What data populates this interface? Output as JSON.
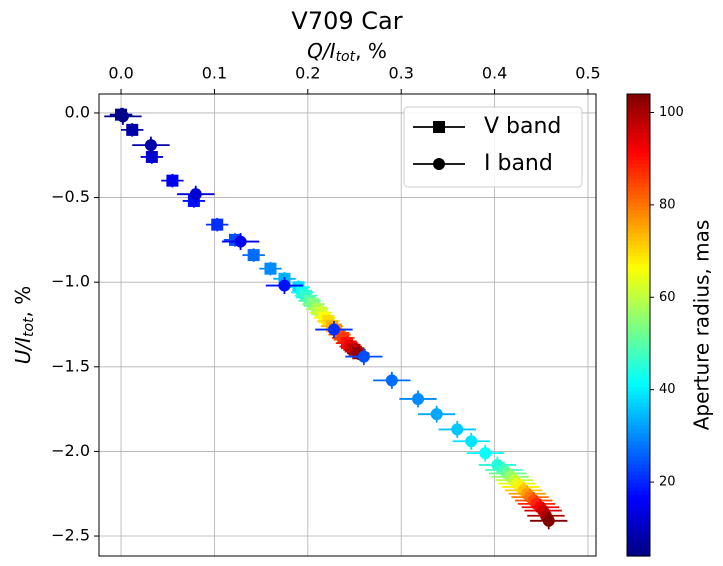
{
  "chart_data": {
    "type": "scatter",
    "title": "V709 Car",
    "xlabel": [
      "Q/I",
      "tot",
      ", %"
    ],
    "ylabel": [
      "U/I",
      "tot",
      ", %"
    ],
    "xlim": [
      -0.0236,
      0.5086
    ],
    "ylim": [
      -2.618,
      0.112
    ],
    "xticks": [
      {
        "value": 0,
        "label": "0.0"
      },
      0.1,
      0.2,
      0.3,
      0.4,
      0.5
    ],
    "yticks": [
      {
        "value": 0,
        "label": "0.0"
      },
      {
        "value": -0.5,
        "label": "−0.5"
      },
      {
        "value": -1,
        "label": "−1.0"
      },
      {
        "value": -1.5,
        "label": "−1.5"
      },
      {
        "value": -2,
        "label": "−2.0"
      },
      {
        "value": -2.5,
        "label": "−2.5"
      }
    ],
    "grid": true,
    "legend": "upper right",
    "colormap": "jet",
    "colorbar": {
      "label": "Aperture radius, mas",
      "clim": [
        4,
        104
      ],
      "ticks": [
        20,
        40,
        60,
        80,
        100
      ]
    },
    "series": [
      {
        "name": "V band",
        "marker": "square",
        "xerr": 0.012,
        "yerr": 0.04,
        "x": [
          0.0,
          0.012,
          0.033,
          0.055,
          0.078,
          0.103,
          0.122,
          0.142,
          0.16,
          0.175,
          0.19,
          0.194,
          0.198,
          0.202,
          0.206,
          0.21,
          0.214,
          0.218,
          0.222,
          0.226,
          0.23,
          0.234,
          0.238,
          0.242,
          0.246,
          0.25,
          0.254
        ],
        "values": [
          -0.01,
          -0.1,
          -0.26,
          -0.4,
          -0.52,
          -0.66,
          -0.75,
          -0.84,
          -0.92,
          -0.98,
          -1.03,
          -1.06,
          -1.08,
          -1.11,
          -1.13,
          -1.16,
          -1.18,
          -1.21,
          -1.23,
          -1.26,
          -1.28,
          -1.31,
          -1.33,
          -1.36,
          -1.38,
          -1.4,
          -1.42
        ],
        "radius": [
          5,
          8,
          12,
          15,
          18,
          21,
          24,
          27,
          30,
          34,
          38,
          42,
          46,
          50,
          54,
          58,
          62,
          66,
          70,
          74,
          78,
          82,
          86,
          90,
          94,
          98,
          102
        ]
      },
      {
        "name": "I band",
        "marker": "circle",
        "xerr": 0.02,
        "yerr": 0.05,
        "x": [
          0.002,
          0.032,
          0.08,
          0.128,
          0.175,
          0.228,
          0.26,
          0.29,
          0.318,
          0.338,
          0.36,
          0.375,
          0.39,
          0.403,
          0.41,
          0.414,
          0.417,
          0.421,
          0.424,
          0.428,
          0.431,
          0.435,
          0.438,
          0.442,
          0.445,
          0.449,
          0.452,
          0.455,
          0.458
        ],
        "values": [
          -0.02,
          -0.19,
          -0.48,
          -0.76,
          -1.02,
          -1.28,
          -1.44,
          -1.58,
          -1.69,
          -1.78,
          -1.87,
          -1.94,
          -2.01,
          -2.08,
          -2.11,
          -2.13,
          -2.15,
          -2.17,
          -2.19,
          -2.21,
          -2.23,
          -2.25,
          -2.27,
          -2.29,
          -2.31,
          -2.33,
          -2.35,
          -2.38,
          -2.41
        ],
        "radius": [
          5,
          8,
          12,
          15,
          18,
          21,
          24,
          27,
          30,
          33,
          36,
          39,
          42,
          45,
          48,
          52,
          56,
          60,
          64,
          68,
          72,
          76,
          80,
          84,
          88,
          92,
          96,
          100,
          104
        ]
      }
    ]
  }
}
